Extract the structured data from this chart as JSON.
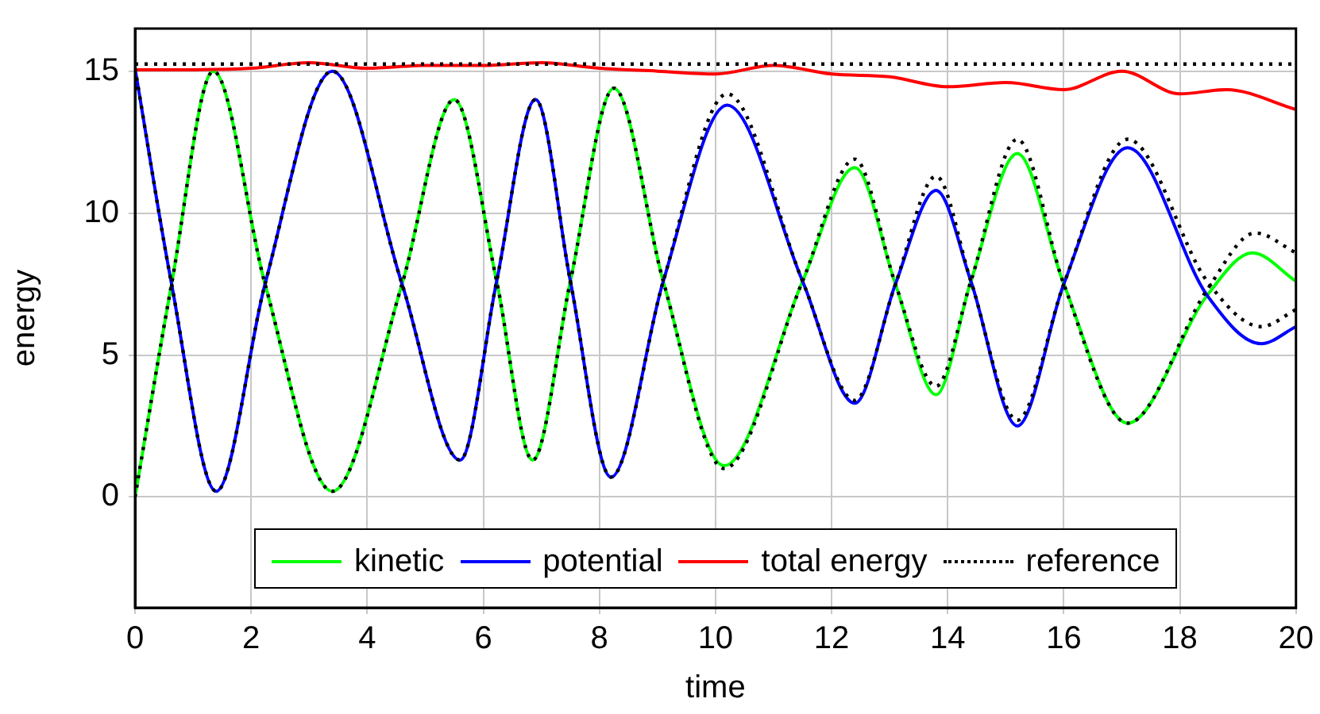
{
  "chart_data": {
    "type": "line",
    "xlabel": "time",
    "ylabel": "energy",
    "xlim": [
      0,
      20
    ],
    "xticks": [
      0,
      2,
      4,
      6,
      8,
      10,
      12,
      14,
      16,
      18,
      20
    ],
    "ylim": [
      -3.9,
      16.5
    ],
    "yticks": [
      0,
      5,
      10,
      15
    ],
    "grid": true,
    "legend": "bottom",
    "marker": "none",
    "series": [
      {
        "name": "kinetic",
        "color": "#00ff00",
        "line_style": "solid",
        "x": [
          0,
          0.63,
          1.35,
          2.24,
          3.4,
          4.6,
          5.5,
          6.23,
          6.85,
          7.5,
          8.25,
          9.1,
          10.15,
          11.5,
          12.4,
          13.1,
          13.8,
          14.4,
          15.2,
          16.0,
          17.1,
          18.47,
          19.25,
          20
        ],
        "values": [
          0,
          7.5,
          15.0,
          7.5,
          0.2,
          7.5,
          14.0,
          7.6,
          1.3,
          7.6,
          14.4,
          7.6,
          1.1,
          7.6,
          11.6,
          7.5,
          3.6,
          7.6,
          12.1,
          7.5,
          2.6,
          7.1,
          8.6,
          7.6
        ]
      },
      {
        "name": "potential",
        "color": "#0000ff",
        "line_style": "solid",
        "x": [
          0,
          0.63,
          1.4,
          2.24,
          3.4,
          4.6,
          5.6,
          6.23,
          6.9,
          7.5,
          8.2,
          9.1,
          10.2,
          11.5,
          12.4,
          13.1,
          13.8,
          14.4,
          15.2,
          16.0,
          17.1,
          18.47,
          19.4,
          20
        ],
        "values": [
          15.1,
          7.5,
          0.2,
          7.5,
          15.0,
          7.5,
          1.3,
          7.6,
          14.0,
          7.6,
          0.7,
          7.6,
          13.8,
          7.6,
          3.3,
          7.5,
          10.8,
          7.6,
          2.5,
          7.5,
          12.3,
          7.1,
          5.4,
          6.0
        ]
      },
      {
        "name": "total energy",
        "color": "#ff0000",
        "line_style": "solid",
        "x": [
          0,
          1,
          2,
          3,
          4,
          5,
          6,
          7,
          8,
          9,
          10,
          11,
          12,
          13,
          14,
          15,
          16,
          17,
          18,
          18.8,
          20
        ],
        "values": [
          15.05,
          15.05,
          15.1,
          15.3,
          15.1,
          15.2,
          15.2,
          15.3,
          15.1,
          15.0,
          14.9,
          15.2,
          14.9,
          14.8,
          14.45,
          14.6,
          14.35,
          15.0,
          14.2,
          14.35,
          13.65
        ]
      },
      {
        "name": "reference",
        "color": "#000000",
        "line_style": "dotted",
        "x": [
          0,
          20
        ],
        "values": [
          15.25,
          15.25
        ]
      },
      {
        "color": "#000000",
        "line_style": "dotted",
        "x": [
          0,
          0.63,
          1.35,
          2.24,
          3.4,
          4.6,
          5.5,
          6.23,
          6.85,
          7.5,
          8.25,
          9.1,
          10.15,
          11.5,
          12.4,
          13.1,
          13.8,
          14.4,
          15.2,
          16.0,
          17.1,
          18.47,
          19.3,
          20
        ],
        "values": [
          0,
          7.5,
          15.0,
          7.5,
          0.2,
          7.5,
          14.0,
          7.6,
          1.3,
          7.6,
          14.4,
          7.6,
          1.0,
          7.6,
          11.9,
          7.5,
          3.9,
          7.6,
          12.6,
          7.5,
          2.6,
          7.3,
          9.3,
          8.6
        ]
      },
      {
        "color": "#000000",
        "line_style": "dotted",
        "x": [
          0,
          0.63,
          1.4,
          2.24,
          3.4,
          4.6,
          5.6,
          6.23,
          6.9,
          7.5,
          8.2,
          9.1,
          10.2,
          11.5,
          12.4,
          13.1,
          13.8,
          14.4,
          15.2,
          16.0,
          17.1,
          18.47,
          19.4,
          20
        ],
        "values": [
          15.1,
          7.5,
          0.2,
          7.5,
          15.0,
          7.5,
          1.3,
          7.6,
          14.0,
          7.6,
          0.7,
          7.6,
          14.2,
          7.6,
          3.4,
          7.5,
          11.3,
          7.6,
          2.7,
          7.5,
          12.6,
          7.6,
          6.0,
          6.6
        ]
      }
    ]
  }
}
